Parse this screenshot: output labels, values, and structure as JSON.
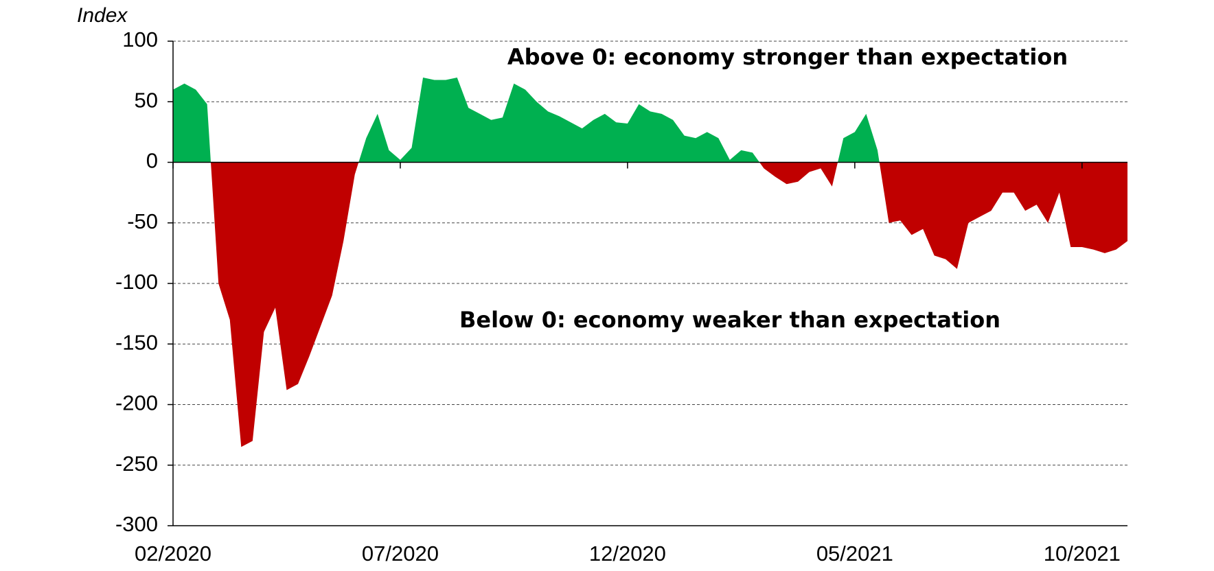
{
  "chart_data": {
    "type": "area",
    "y_label": "Index",
    "annotations": [
      "Above 0: economy stronger than expectation",
      "Below 0: economy weaker than expectation"
    ],
    "categories": [
      "02/2020",
      null,
      null,
      null,
      null,
      null,
      null,
      null,
      null,
      null,
      null,
      null,
      null,
      null,
      null,
      null,
      null,
      null,
      null,
      null,
      "07/2020",
      null,
      null,
      null,
      null,
      null,
      null,
      null,
      null,
      null,
      null,
      null,
      null,
      null,
      null,
      null,
      null,
      null,
      null,
      null,
      "12/2020",
      null,
      null,
      null,
      null,
      null,
      null,
      null,
      null,
      null,
      null,
      null,
      null,
      null,
      null,
      null,
      null,
      null,
      null,
      null,
      "05/2021",
      null,
      null,
      null,
      null,
      null,
      null,
      null,
      null,
      null,
      null,
      null,
      null,
      null,
      null,
      null,
      null,
      null,
      null,
      null,
      "10/2021",
      null,
      null,
      null,
      null
    ],
    "values": [
      60,
      65,
      60,
      48,
      -100,
      -130,
      -235,
      -230,
      -140,
      -120,
      -188,
      -183,
      -160,
      -135,
      -110,
      -65,
      -10,
      20,
      40,
      10,
      2,
      12,
      70,
      68,
      68,
      70,
      45,
      40,
      35,
      37,
      65,
      60,
      50,
      42,
      38,
      33,
      28,
      35,
      40,
      33,
      32,
      48,
      42,
      40,
      35,
      22,
      20,
      25,
      20,
      2,
      10,
      8,
      -5,
      -12,
      -18,
      -16,
      -8,
      -5,
      -20,
      20,
      25,
      40,
      10,
      -50,
      -48,
      -60,
      -55,
      -77,
      -80,
      -88,
      -50,
      -45,
      -40,
      -25,
      -25,
      -40,
      -35,
      -50,
      -25,
      -70,
      -70,
      -72,
      -75,
      -72,
      -65
    ],
    "positive_color": "#00b050",
    "negative_color": "#c00000",
    "ylim": [
      -300,
      100
    ],
    "yticks": [
      100,
      50,
      0,
      -50,
      -100,
      -150,
      -200,
      -250,
      -300
    ],
    "grid": true
  }
}
